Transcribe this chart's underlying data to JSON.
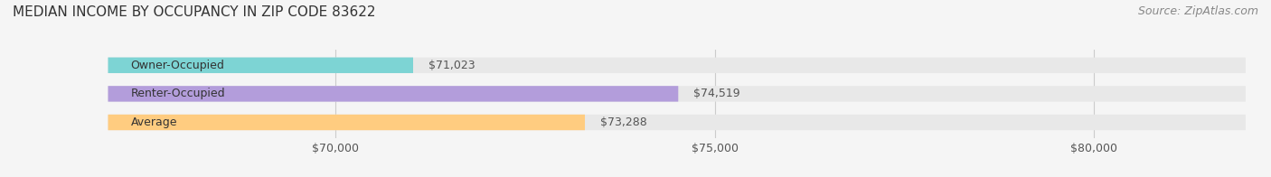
{
  "title": "MEDIAN INCOME BY OCCUPANCY IN ZIP CODE 83622",
  "source": "Source: ZipAtlas.com",
  "categories": [
    "Owner-Occupied",
    "Renter-Occupied",
    "Average"
  ],
  "values": [
    71023,
    74519,
    73288
  ],
  "labels": [
    "$71,023",
    "$74,519",
    "$73,288"
  ],
  "bar_colors": [
    "#7dd4d4",
    "#b39ddb",
    "#ffcc80"
  ],
  "bar_edge_colors": [
    "#7dd4d4",
    "#b39ddb",
    "#ffcc80"
  ],
  "background_color": "#f5f5f5",
  "bar_bg_color": "#e8e8e8",
  "xlim_min": 67000,
  "xlim_max": 82000,
  "xticks": [
    70000,
    75000,
    80000
  ],
  "xtick_labels": [
    "$70,000",
    "$75,000",
    "$80,000"
  ],
  "bar_height": 0.55,
  "title_fontsize": 11,
  "source_fontsize": 9,
  "label_fontsize": 9,
  "tick_fontsize": 9,
  "category_fontsize": 9
}
